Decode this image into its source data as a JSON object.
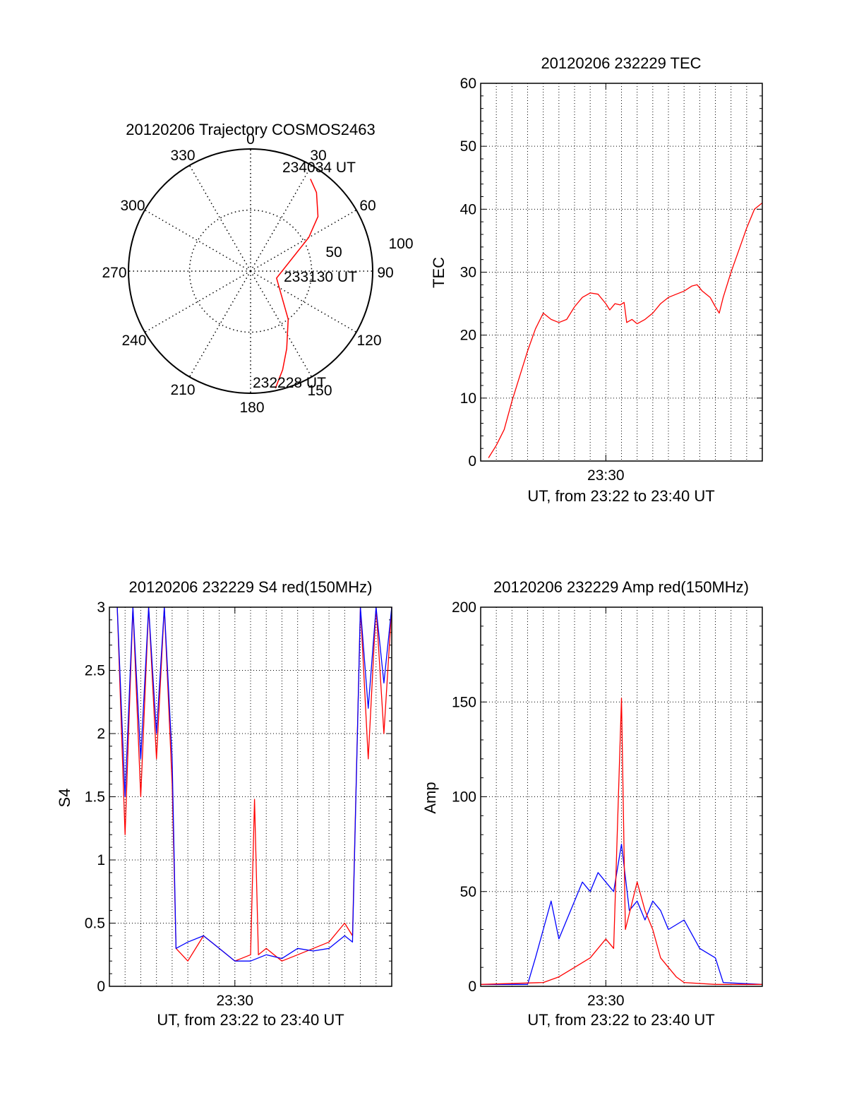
{
  "chart_data": [
    {
      "type": "polar-trajectory",
      "title": "20120206 Trajectory COSMOS2463",
      "angle_labels": [
        "0",
        "30",
        "60",
        "90",
        "120",
        "150",
        "180",
        "210",
        "240",
        "270",
        "300",
        "330"
      ],
      "radius_labels": [
        "50",
        "100"
      ],
      "rlim": [
        0,
        100
      ],
      "grid": true,
      "annotations": [
        "234034 UT",
        "233130 UT",
        "232228 UT"
      ],
      "series": [
        {
          "color": "#ff0000",
          "points": [
            {
              "azimuth": 168,
              "radius": 98
            },
            {
              "azimuth": 162,
              "radius": 85
            },
            {
              "azimuth": 155,
              "radius": 70
            },
            {
              "azimuth": 142,
              "radius": 50
            },
            {
              "azimuth": 105,
              "radius": 22
            },
            {
              "azimuth": 60,
              "radius": 55
            },
            {
              "azimuth": 51,
              "radius": 71
            },
            {
              "azimuth": 40,
              "radius": 84
            },
            {
              "azimuth": 33,
              "radius": 90
            }
          ]
        }
      ]
    },
    {
      "type": "line",
      "title": "20120206 232229 TEC",
      "xlabel": "UT, from 23:22 to 23:40 UT",
      "ylabel": "TEC",
      "x_tick_labels": [
        "23:30"
      ],
      "y_ticks": [
        "0",
        "10",
        "20",
        "30",
        "40",
        "50",
        "60"
      ],
      "xlim": [
        "23:22",
        "23:40"
      ],
      "ylim": [
        0,
        60
      ],
      "grid": true,
      "series": [
        {
          "color": "#ff0000",
          "points": [
            [
              "23:22:30",
              0.5
            ],
            [
              "23:23:00",
              2.5
            ],
            [
              "23:23:30",
              5
            ],
            [
              "23:24:00",
              9.5
            ],
            [
              "23:24:30",
              13.5
            ],
            [
              "23:25:00",
              17.5
            ],
            [
              "23:25:30",
              21
            ],
            [
              "23:26:00",
              23.5
            ],
            [
              "23:26:30",
              22.5
            ],
            [
              "23:27:00",
              22
            ],
            [
              "23:27:30",
              22.5
            ],
            [
              "23:28:00",
              24.5
            ],
            [
              "23:28:30",
              26
            ],
            [
              "23:29:00",
              26.7
            ],
            [
              "23:29:30",
              26.5
            ],
            [
              "23:30:00",
              25
            ],
            [
              "23:30:15",
              24
            ],
            [
              "23:30:35",
              25
            ],
            [
              "23:30:55",
              24.8
            ],
            [
              "23:31:10",
              25.2
            ],
            [
              "23:31:20",
              22
            ],
            [
              "23:31:40",
              22.5
            ],
            [
              "23:32:00",
              21.8
            ],
            [
              "23:32:30",
              22.5
            ],
            [
              "23:33:00",
              23.5
            ],
            [
              "23:33:30",
              25
            ],
            [
              "23:34:00",
              26
            ],
            [
              "23:34:30",
              26.5
            ],
            [
              "23:35:00",
              27
            ],
            [
              "23:35:30",
              27.8
            ],
            [
              "23:35:50",
              28
            ],
            [
              "23:36:10",
              27
            ],
            [
              "23:36:40",
              26
            ],
            [
              "23:37:00",
              24.5
            ],
            [
              "23:37:15",
              23.5
            ],
            [
              "23:37:30",
              26
            ],
            [
              "23:38:00",
              30
            ],
            [
              "23:38:30",
              33.5
            ],
            [
              "23:39:00",
              37
            ],
            [
              "23:39:30",
              40
            ],
            [
              "23:40:00",
              41
            ]
          ]
        }
      ]
    },
    {
      "type": "line",
      "title": "20120206 232229 S4 red(150MHz)",
      "xlabel": "UT, from 23:22 to 23:40 UT",
      "ylabel": "S4",
      "x_tick_labels": [
        "23:30"
      ],
      "y_ticks": [
        "0",
        "0.5",
        "1",
        "1.5",
        "2",
        "2.5",
        "3"
      ],
      "xlim": [
        "23:22",
        "23:40"
      ],
      "ylim": [
        0,
        3
      ],
      "grid": true,
      "series": [
        {
          "color": "#ff0000",
          "points": [
            [
              "23:22:30",
              3
            ],
            [
              "23:23:00",
              1.2
            ],
            [
              "23:23:30",
              3
            ],
            [
              "23:24:00",
              1.5
            ],
            [
              "23:24:30",
              3
            ],
            [
              "23:25:00",
              1.8
            ],
            [
              "23:25:30",
              3
            ],
            [
              "23:26:00",
              1.6
            ],
            [
              "23:26:15",
              0.3
            ],
            [
              "23:27:00",
              0.2
            ],
            [
              "23:28:00",
              0.4
            ],
            [
              "23:29:00",
              0.3
            ],
            [
              "23:30:00",
              0.2
            ],
            [
              "23:31:00",
              0.25
            ],
            [
              "23:31:15",
              1.48
            ],
            [
              "23:31:30",
              0.25
            ],
            [
              "23:32:00",
              0.3
            ],
            [
              "23:33:00",
              0.2
            ],
            [
              "23:34:00",
              0.25
            ],
            [
              "23:35:00",
              0.3
            ],
            [
              "23:36:00",
              0.35
            ],
            [
              "23:37:00",
              0.5
            ],
            [
              "23:37:30",
              0.4
            ],
            [
              "23:38:00",
              3
            ],
            [
              "23:38:30",
              1.8
            ],
            [
              "23:39:00",
              3
            ],
            [
              "23:39:30",
              2.0
            ],
            [
              "23:40:00",
              3
            ]
          ]
        },
        {
          "color": "#0000ff",
          "points": [
            [
              "23:22:30",
              3
            ],
            [
              "23:23:00",
              1.5
            ],
            [
              "23:23:30",
              3
            ],
            [
              "23:24:00",
              1.8
            ],
            [
              "23:24:30",
              3
            ],
            [
              "23:25:00",
              2.0
            ],
            [
              "23:25:30",
              3
            ],
            [
              "23:26:00",
              1.8
            ],
            [
              "23:26:15",
              0.3
            ],
            [
              "23:27:00",
              0.35
            ],
            [
              "23:28:00",
              0.4
            ],
            [
              "23:29:00",
              0.3
            ],
            [
              "23:30:00",
              0.2
            ],
            [
              "23:31:00",
              0.2
            ],
            [
              "23:32:00",
              0.25
            ],
            [
              "23:33:00",
              0.22
            ],
            [
              "23:34:00",
              0.3
            ],
            [
              "23:35:00",
              0.28
            ],
            [
              "23:36:00",
              0.3
            ],
            [
              "23:37:00",
              0.4
            ],
            [
              "23:37:30",
              0.35
            ],
            [
              "23:38:00",
              3
            ],
            [
              "23:38:30",
              2.2
            ],
            [
              "23:39:00",
              3
            ],
            [
              "23:39:30",
              2.4
            ],
            [
              "23:40:00",
              3
            ]
          ]
        }
      ]
    },
    {
      "type": "line",
      "title": "20120206 232229 Amp red(150MHz)",
      "xlabel": "UT, from 23:22 to 23:40 UT",
      "ylabel": "Amp",
      "x_tick_labels": [
        "23:30"
      ],
      "y_ticks": [
        "0",
        "50",
        "100",
        "150",
        "200"
      ],
      "xlim": [
        "23:22",
        "23:40"
      ],
      "ylim": [
        0,
        200
      ],
      "grid": true,
      "series": [
        {
          "color": "#0000ff",
          "points": [
            [
              "23:22:00",
              1
            ],
            [
              "23:25:00",
              1
            ],
            [
              "23:25:30",
              15
            ],
            [
              "23:26:00",
              30
            ],
            [
              "23:26:30",
              45
            ],
            [
              "23:27:00",
              25
            ],
            [
              "23:27:30",
              35
            ],
            [
              "23:28:00",
              45
            ],
            [
              "23:28:30",
              55
            ],
            [
              "23:29:00",
              50
            ],
            [
              "23:29:30",
              60
            ],
            [
              "23:30:00",
              55
            ],
            [
              "23:30:30",
              50
            ],
            [
              "23:31:00",
              75
            ],
            [
              "23:31:30",
              40
            ],
            [
              "23:32:00",
              45
            ],
            [
              "23:32:30",
              35
            ],
            [
              "23:33:00",
              45
            ],
            [
              "23:33:30",
              40
            ],
            [
              "23:34:00",
              30
            ],
            [
              "23:35:00",
              35
            ],
            [
              "23:36:00",
              20
            ],
            [
              "23:37:00",
              15
            ],
            [
              "23:37:30",
              2
            ],
            [
              "23:40:00",
              1
            ]
          ]
        },
        {
          "color": "#ff0000",
          "points": [
            [
              "23:22:00",
              1
            ],
            [
              "23:26:00",
              2
            ],
            [
              "23:27:00",
              5
            ],
            [
              "23:28:00",
              10
            ],
            [
              "23:29:00",
              15
            ],
            [
              "23:30:00",
              25
            ],
            [
              "23:30:30",
              20
            ],
            [
              "23:31:00",
              152
            ],
            [
              "23:31:15",
              30
            ],
            [
              "23:32:00",
              55
            ],
            [
              "23:32:30",
              40
            ],
            [
              "23:33:00",
              30
            ],
            [
              "23:33:30",
              15
            ],
            [
              "23:34:00",
              10
            ],
            [
              "23:34:30",
              5
            ],
            [
              "23:35:00",
              2
            ],
            [
              "23:37:00",
              1
            ],
            [
              "23:40:00",
              1
            ]
          ]
        }
      ]
    }
  ]
}
